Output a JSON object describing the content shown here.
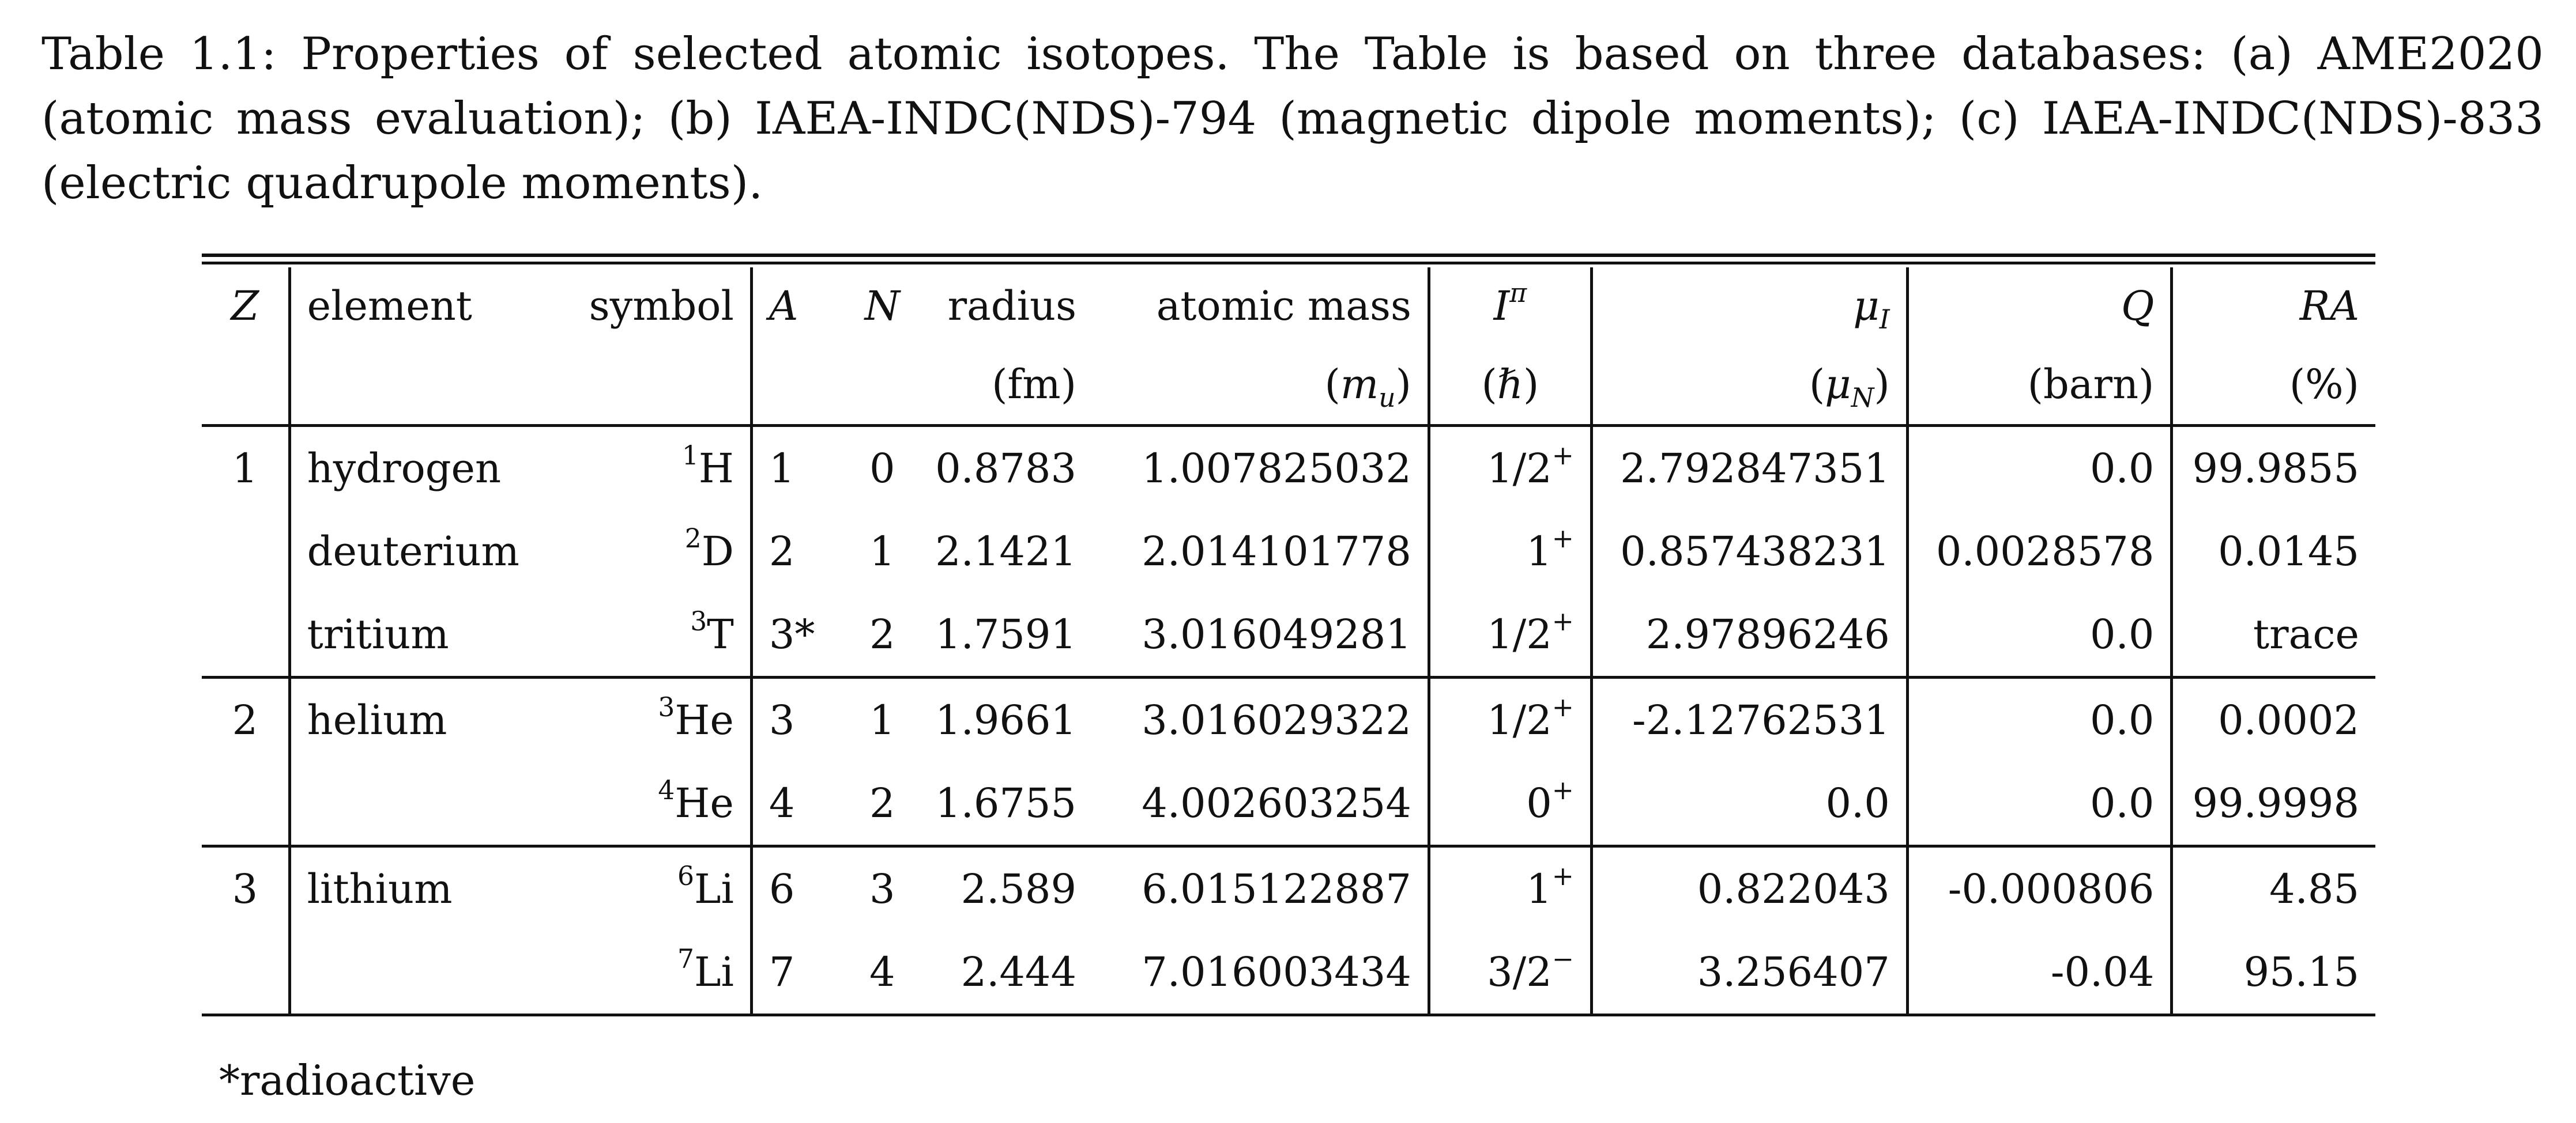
{
  "caption": "Table 1.1: Properties of selected atomic isotopes. The Table is based on three databases: (a) AME2020 (atomic mass evaluation); (b) IAEA-INDC(NDS)-794 (magnetic dipole moments); (c) IAEA-INDC(NDS)-833 (electric quadrupole moments).",
  "headers": {
    "z": "Z",
    "element": "element",
    "symbol": "symbol",
    "a": "A",
    "n": "N",
    "radius": "radius",
    "radius_unit": "(fm)",
    "mass": "atomic mass",
    "mass_unit_open": "(",
    "mass_unit_sym": "m",
    "mass_unit_sub": "u",
    "mass_unit_close": ")",
    "spin_sym": "I",
    "spin_sup": "π",
    "spin_unit": "(ℏ)",
    "mu_sym": "μ",
    "mu_sub": "I",
    "mu_unit_open": "(",
    "mu_unit_sym": "μ",
    "mu_unit_sub": "N",
    "mu_unit_close": ")",
    "q": "Q",
    "q_unit": "(barn)",
    "ra": "RA",
    "ra_unit": "(%)"
  },
  "rows": [
    {
      "z": "1",
      "element": "hydrogen",
      "mass_number_sup": "1",
      "symbol": "H",
      "a": "1",
      "n": "0",
      "radius": "0.8783",
      "mass": "1.007825032",
      "spin": "1/2",
      "parity": "+",
      "mu": "2.792847351",
      "q": "0.0",
      "ra": "99.9855"
    },
    {
      "z": "",
      "element": "deuterium",
      "mass_number_sup": "2",
      "symbol": "D",
      "a": "2",
      "n": "1",
      "radius": "2.1421",
      "mass": "2.014101778",
      "spin": "1",
      "parity": "+",
      "mu": "0.857438231",
      "q": "0.0028578",
      "ra": "0.0145"
    },
    {
      "z": "",
      "element": "tritium",
      "mass_number_sup": "3",
      "symbol": "T",
      "a": "3*",
      "n": "2",
      "radius": "1.7591",
      "mass": "3.016049281",
      "spin": "1/2",
      "parity": "+",
      "mu": "2.97896246",
      "q": "0.0",
      "ra": "trace"
    },
    {
      "z": "2",
      "element": "helium",
      "mass_number_sup": "3",
      "symbol": "He",
      "a": "3",
      "n": "1",
      "radius": "1.9661",
      "mass": "3.016029322",
      "spin": "1/2",
      "parity": "+",
      "mu": "-2.12762531",
      "q": "0.0",
      "ra": "0.0002"
    },
    {
      "z": "",
      "element": "",
      "mass_number_sup": "4",
      "symbol": "He",
      "a": "4",
      "n": "2",
      "radius": "1.6755",
      "mass": "4.002603254",
      "spin": "0",
      "parity": "+",
      "mu": "0.0",
      "q": "0.0",
      "ra": "99.9998"
    },
    {
      "z": "3",
      "element": "lithium",
      "mass_number_sup": "6",
      "symbol": "Li",
      "a": "6",
      "n": "3",
      "radius": "2.589",
      "mass": "6.015122887",
      "spin": "1",
      "parity": "+",
      "mu": "0.822043",
      "q": "-0.000806",
      "ra": "4.85"
    },
    {
      "z": "",
      "element": "",
      "mass_number_sup": "7",
      "symbol": "Li",
      "a": "7",
      "n": "4",
      "radius": "2.444",
      "mass": "7.016003434",
      "spin": "3/2",
      "parity": "−",
      "mu": "3.256407",
      "q": "-0.04",
      "ra": "95.15"
    }
  ],
  "footnote": "*radioactive"
}
